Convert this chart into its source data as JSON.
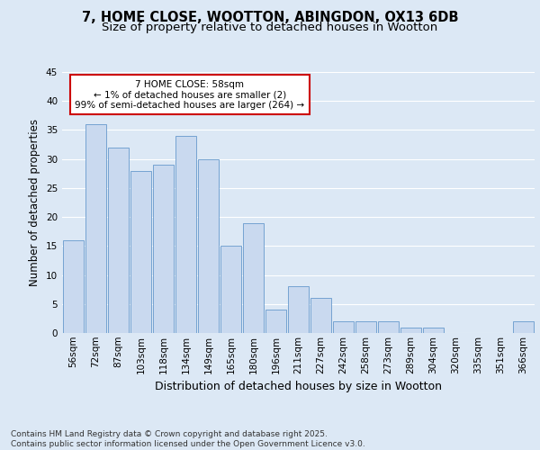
{
  "title_line1": "7, HOME CLOSE, WOOTTON, ABINGDON, OX13 6DB",
  "title_line2": "Size of property relative to detached houses in Wootton",
  "xlabel": "Distribution of detached houses by size in Wootton",
  "ylabel": "Number of detached properties",
  "categories": [
    "56sqm",
    "72sqm",
    "87sqm",
    "103sqm",
    "118sqm",
    "134sqm",
    "149sqm",
    "165sqm",
    "180sqm",
    "196sqm",
    "211sqm",
    "227sqm",
    "242sqm",
    "258sqm",
    "273sqm",
    "289sqm",
    "304sqm",
    "320sqm",
    "335sqm",
    "351sqm",
    "366sqm"
  ],
  "values": [
    16,
    36,
    32,
    28,
    29,
    34,
    30,
    15,
    19,
    4,
    8,
    6,
    2,
    2,
    2,
    1,
    1,
    0,
    0,
    0,
    2
  ],
  "bar_color": "#c9d9ef",
  "bar_edge_color": "#6699cc",
  "annotation_text": "7 HOME CLOSE: 58sqm\n← 1% of detached houses are smaller (2)\n99% of semi-detached houses are larger (264) →",
  "annotation_box_color": "#ffffff",
  "annotation_box_edge": "#cc0000",
  "ylim": [
    0,
    45
  ],
  "yticks": [
    0,
    5,
    10,
    15,
    20,
    25,
    30,
    35,
    40,
    45
  ],
  "background_color": "#dce8f5",
  "plot_bg_color": "#dce8f5",
  "grid_color": "#ffffff",
  "footer": "Contains HM Land Registry data © Crown copyright and database right 2025.\nContains public sector information licensed under the Open Government Licence v3.0.",
  "title_fontsize": 10.5,
  "subtitle_fontsize": 9.5,
  "xlabel_fontsize": 9,
  "ylabel_fontsize": 8.5,
  "tick_fontsize": 7.5,
  "annotation_fontsize": 7.5,
  "footer_fontsize": 6.5
}
